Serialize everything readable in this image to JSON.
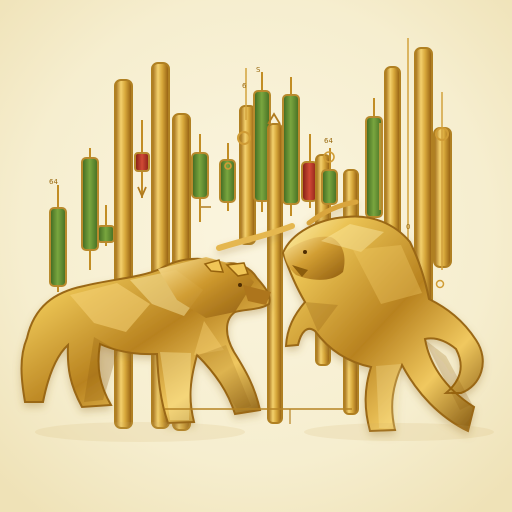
{
  "artwork": {
    "labels": {
      "left": "64",
      "top_left": "6",
      "top_right": "S",
      "center_right": "64",
      "right": "0"
    }
  },
  "subjects": {
    "bear": "bear-sculpture",
    "bull": "bull-sculpture"
  },
  "palette": {
    "background": "#f6eecf",
    "gold": "#c99a27",
    "gold_light": "#f2d16b",
    "gold_dark": "#8b5c0d",
    "green": "#5f8c2a",
    "red": "#b53121"
  }
}
